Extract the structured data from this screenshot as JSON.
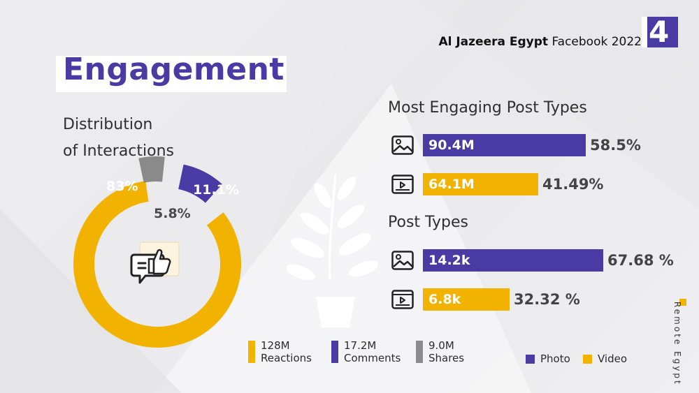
{
  "header": {
    "title_bold": "Al Jazeera Egypt",
    "title_rest": "Facebook 2022",
    "page_number": "4"
  },
  "main_title": "Engagement",
  "distribution": {
    "title_line1": "Distribution",
    "title_line2": "of Interactions"
  },
  "legend_bottom": [
    {
      "value": "128M",
      "label": "Reactions",
      "color": "#f2b300"
    },
    {
      "value": "17.2M",
      "label": "Comments",
      "color": "#4a3aa4"
    },
    {
      "value": "9.0M",
      "label": "Shares",
      "color": "#8a8a8a"
    }
  ],
  "most_engaging": {
    "title": "Most Engaging Post Types"
  },
  "post_types": {
    "title": "Post Types"
  },
  "legend_right": [
    {
      "label": "Photo",
      "color": "#4a3aa4"
    },
    {
      "label": "Video",
      "color": "#f2b300"
    }
  ],
  "brand": "Remote Egypt",
  "chart_data": [
    {
      "type": "pie",
      "title": "Distribution of Interactions",
      "categories": [
        "Reactions",
        "Comments",
        "Shares"
      ],
      "values": [
        83,
        11.1,
        5.8
      ],
      "labels": [
        "83%",
        "11.1%",
        "5.8%"
      ],
      "colors": [
        "#f2b300",
        "#4a3aa4",
        "#8a8a8a"
      ]
    },
    {
      "type": "bar",
      "title": "Most Engaging Post Types",
      "categories": [
        "Photo",
        "Video"
      ],
      "values": [
        90.4,
        64.1
      ],
      "value_labels": [
        "90.4M",
        "64.1M"
      ],
      "percent_labels": [
        "58.5%",
        "41.49%"
      ],
      "colors": [
        "#4a3aa4",
        "#f2b300"
      ],
      "unit": "M",
      "xlim": [
        0,
        90.4
      ]
    },
    {
      "type": "bar",
      "title": "Post Types",
      "categories": [
        "Photo",
        "Video"
      ],
      "values": [
        14.2,
        6.8
      ],
      "value_labels": [
        "14.2k",
        "6.8k"
      ],
      "percent_labels": [
        "67.68 %",
        "32.32 %"
      ],
      "colors": [
        "#4a3aa4",
        "#f2b300"
      ],
      "unit": "k",
      "xlim": [
        0,
        14.2
      ]
    }
  ]
}
